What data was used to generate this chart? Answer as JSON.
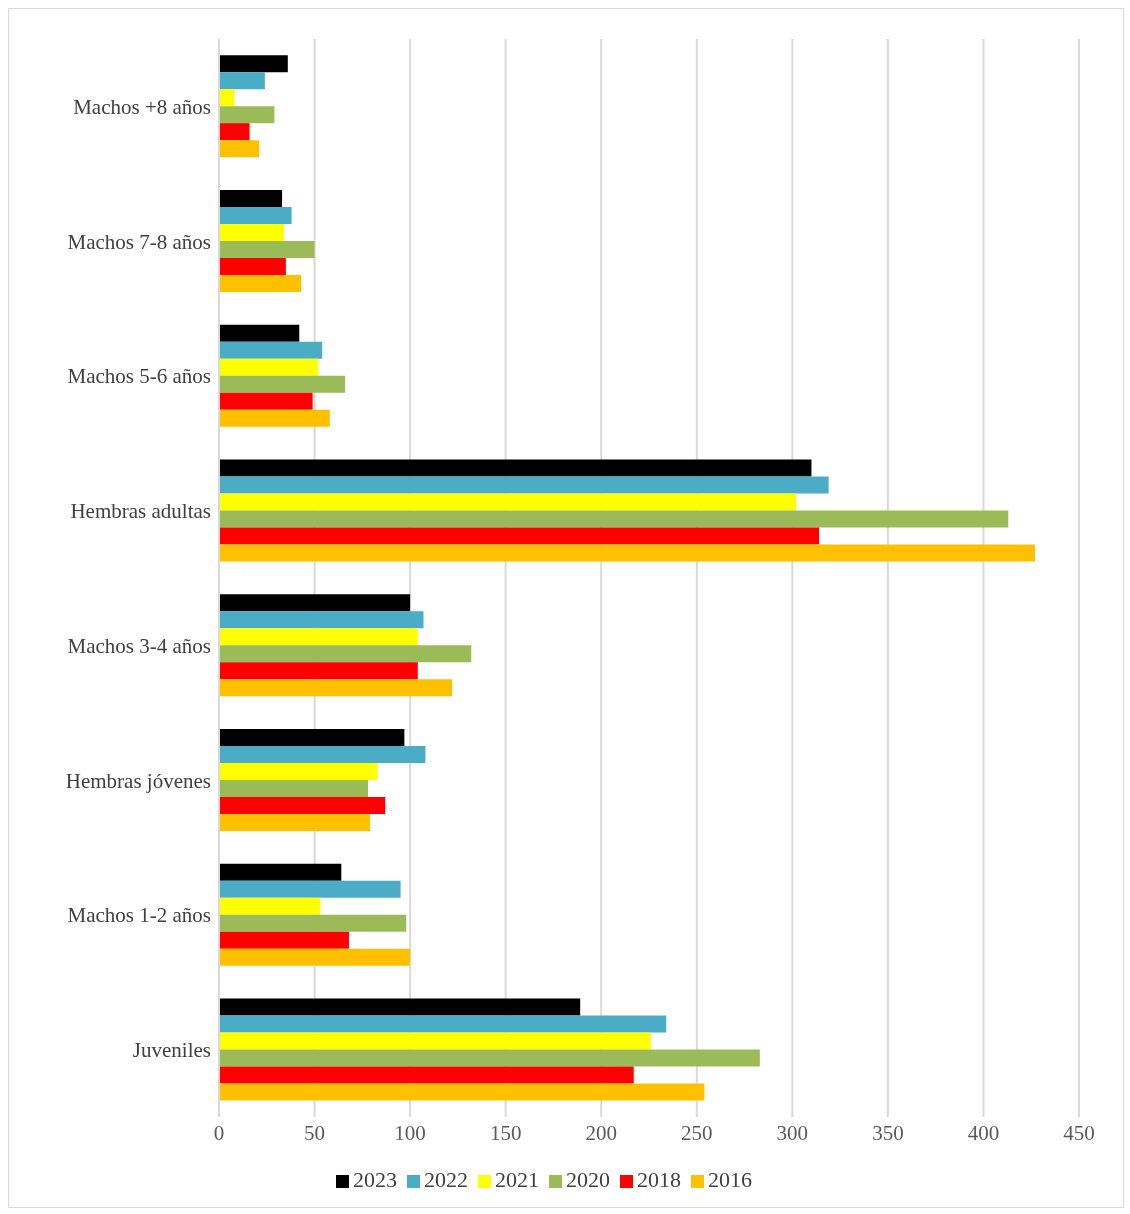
{
  "chart_data": {
    "type": "bar",
    "orientation": "horizontal",
    "categories": [
      "Machos +8 años",
      "Machos 7-8 años",
      "Machos 5-6 años",
      "Hembras adultas",
      "Machos 3-4 años",
      "Hembras jóvenes",
      "Machos 1-2 años",
      "Juveniles"
    ],
    "series": [
      {
        "name": "2023",
        "color": "#000000",
        "values": [
          36,
          33,
          42,
          310,
          100,
          97,
          64,
          189
        ]
      },
      {
        "name": "2022",
        "color": "#4bacc6",
        "values": [
          24,
          38,
          54,
          319,
          107,
          108,
          95,
          234
        ]
      },
      {
        "name": "2021",
        "color": "#ffff00",
        "values": [
          8,
          34,
          52,
          302,
          104,
          83,
          53,
          226
        ]
      },
      {
        "name": "2020",
        "color": "#9bbb59",
        "values": [
          29,
          50,
          66,
          413,
          132,
          78,
          98,
          283
        ]
      },
      {
        "name": "2018",
        "color": "#ff0000",
        "values": [
          16,
          35,
          49,
          314,
          104,
          87,
          68,
          217
        ]
      },
      {
        "name": "2016",
        "color": "#ffc000",
        "values": [
          21,
          43,
          58,
          427,
          122,
          79,
          100,
          254
        ]
      }
    ],
    "xlim": [
      0,
      450
    ],
    "xticks": [
      0,
      50,
      100,
      150,
      200,
      250,
      300,
      350,
      400,
      450
    ],
    "grid": "x",
    "legend": "bottom"
  }
}
